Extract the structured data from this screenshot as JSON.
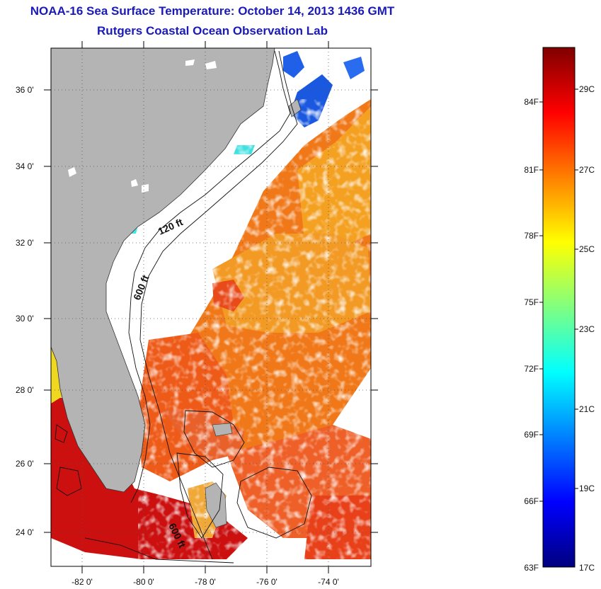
{
  "header": {
    "title": "NOAA-16 Sea Surface Temperature:  October 14, 2013 1436 GMT",
    "subtitle": "Rutgers Coastal Ocean Observation Lab"
  },
  "map": {
    "lat_labels": [
      "36 0'",
      "34 0'",
      "32 0'",
      "30 0'",
      "28 0'",
      "26 0'",
      "24 0'"
    ],
    "lon_labels": [
      "-82 0'",
      "-80 0'",
      "-78 0'",
      "-76 0'",
      "-74 0'"
    ],
    "contour_labels": [
      "120 ft",
      "600 ft",
      "600 ft"
    ],
    "colors": {
      "land": "#b4b4b4",
      "ocean_missing": "#ffffff",
      "coastline": "#222222"
    }
  },
  "colorbar": {
    "f_labels": [
      "84F",
      "81F",
      "78F",
      "75F",
      "72F",
      "69F",
      "66F",
      "63F"
    ],
    "c_labels": [
      "29C",
      "27C",
      "25C",
      "23C",
      "21C",
      "19C",
      "17C"
    ],
    "stops": [
      "#00007f",
      "#0000ff",
      "#0080ff",
      "#00ffff",
      "#80ff80",
      "#ffff00",
      "#ff8000",
      "#ff0000",
      "#7f0000"
    ]
  }
}
